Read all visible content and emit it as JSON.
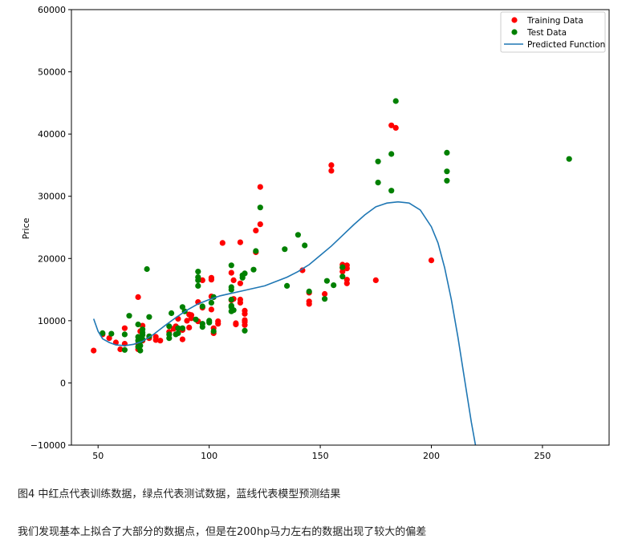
{
  "chart_data": {
    "type": "scatter",
    "xlabel": "",
    "ylabel": "Price",
    "xlim": [
      38,
      280
    ],
    "ylim": [
      -10000,
      60000
    ],
    "x_ticks": [
      "50",
      "100",
      "150",
      "200",
      "250"
    ],
    "x_tick_values": [
      50,
      100,
      150,
      200,
      250
    ],
    "y_ticks": [
      "−10000",
      "0",
      "10000",
      "20000",
      "30000",
      "40000",
      "50000",
      "60000"
    ],
    "y_tick_values": [
      -10000,
      0,
      10000,
      20000,
      30000,
      40000,
      50000,
      60000
    ],
    "legend_position": "top-right",
    "grid": false,
    "series": [
      {
        "name": "Training Data",
        "kind": "scatter",
        "color": "#ff0000",
        "points": [
          [
            48,
            5200
          ],
          [
            52,
            7800
          ],
          [
            55,
            7200
          ],
          [
            58,
            6500
          ],
          [
            60,
            5400
          ],
          [
            62,
            8800
          ],
          [
            62,
            6300
          ],
          [
            68,
            13800
          ],
          [
            68,
            5400
          ],
          [
            68,
            6300
          ],
          [
            69,
            7200
          ],
          [
            69,
            8300
          ],
          [
            70,
            9200
          ],
          [
            70,
            6800
          ],
          [
            73,
            7200
          ],
          [
            76,
            6900
          ],
          [
            76,
            7400
          ],
          [
            78,
            6800
          ],
          [
            82,
            8200
          ],
          [
            84,
            8700
          ],
          [
            85,
            9100
          ],
          [
            86,
            10300
          ],
          [
            88,
            7000
          ],
          [
            88,
            8500
          ],
          [
            90,
            10000
          ],
          [
            91,
            11000
          ],
          [
            91,
            8900
          ],
          [
            92,
            10400
          ],
          [
            92,
            10900
          ],
          [
            95,
            13000
          ],
          [
            95,
            9900
          ],
          [
            97,
            12100
          ],
          [
            97,
            16500
          ],
          [
            101,
            11800
          ],
          [
            101,
            13900
          ],
          [
            101,
            16600
          ],
          [
            101,
            16900
          ],
          [
            102,
            8000
          ],
          [
            102,
            8800
          ],
          [
            104,
            9500
          ],
          [
            104,
            9900
          ],
          [
            106,
            22500
          ],
          [
            110,
            17700
          ],
          [
            110,
            13300
          ],
          [
            111,
            16500
          ],
          [
            111,
            13500
          ],
          [
            112,
            9400
          ],
          [
            112,
            9600
          ],
          [
            114,
            12900
          ],
          [
            114,
            13400
          ],
          [
            114,
            16000
          ],
          [
            114,
            22600
          ],
          [
            116,
            9300
          ],
          [
            116,
            9800
          ],
          [
            116,
            10100
          ],
          [
            116,
            11100
          ],
          [
            116,
            11600
          ],
          [
            121,
            24500
          ],
          [
            121,
            21000
          ],
          [
            123,
            31500
          ],
          [
            123,
            25500
          ],
          [
            142,
            18100
          ],
          [
            145,
            12700
          ],
          [
            145,
            13100
          ],
          [
            145,
            14500
          ],
          [
            152,
            14300
          ],
          [
            155,
            35000
          ],
          [
            155,
            34100
          ],
          [
            160,
            17900
          ],
          [
            160,
            18500
          ],
          [
            160,
            19000
          ],
          [
            162,
            16000
          ],
          [
            162,
            16600
          ],
          [
            162,
            18400
          ],
          [
            162,
            18900
          ],
          [
            175,
            16500
          ],
          [
            182,
            41400
          ],
          [
            184,
            41000
          ],
          [
            200,
            19700
          ]
        ]
      },
      {
        "name": "Test Data",
        "kind": "scatter",
        "color": "#008000",
        "points": [
          [
            52,
            8000
          ],
          [
            56,
            7900
          ],
          [
            62,
            5300
          ],
          [
            62,
            7800
          ],
          [
            64,
            10800
          ],
          [
            68,
            5800
          ],
          [
            68,
            6800
          ],
          [
            68,
            7400
          ],
          [
            68,
            9400
          ],
          [
            69,
            5200
          ],
          [
            69,
            6000
          ],
          [
            69,
            6700
          ],
          [
            70,
            7000
          ],
          [
            70,
            7700
          ],
          [
            70,
            8100
          ],
          [
            70,
            8600
          ],
          [
            72,
            18300
          ],
          [
            73,
            7500
          ],
          [
            73,
            10600
          ],
          [
            82,
            7200
          ],
          [
            82,
            7800
          ],
          [
            82,
            9100
          ],
          [
            83,
            11200
          ],
          [
            85,
            7800
          ],
          [
            86,
            8000
          ],
          [
            86,
            8800
          ],
          [
            88,
            8800
          ],
          [
            88,
            12200
          ],
          [
            89,
            11500
          ],
          [
            94,
            10200
          ],
          [
            95,
            15600
          ],
          [
            95,
            16500
          ],
          [
            95,
            17000
          ],
          [
            95,
            17900
          ],
          [
            97,
            9000
          ],
          [
            97,
            9500
          ],
          [
            97,
            12300
          ],
          [
            100,
            9700
          ],
          [
            100,
            10000
          ],
          [
            101,
            12900
          ],
          [
            102,
            8300
          ],
          [
            102,
            13800
          ],
          [
            110,
            11500
          ],
          [
            110,
            12200
          ],
          [
            110,
            12400
          ],
          [
            110,
            13400
          ],
          [
            110,
            15000
          ],
          [
            110,
            15400
          ],
          [
            110,
            18900
          ],
          [
            111,
            11700
          ],
          [
            115,
            16900
          ],
          [
            115,
            17300
          ],
          [
            116,
            8400
          ],
          [
            116,
            17600
          ],
          [
            120,
            18200
          ],
          [
            121,
            21200
          ],
          [
            123,
            28200
          ],
          [
            134,
            21500
          ],
          [
            135,
            15600
          ],
          [
            140,
            23800
          ],
          [
            143,
            22100
          ],
          [
            145,
            14700
          ],
          [
            152,
            13500
          ],
          [
            153,
            16400
          ],
          [
            156,
            15700
          ],
          [
            160,
            17100
          ],
          [
            160,
            18600
          ],
          [
            176,
            32200
          ],
          [
            176,
            35600
          ],
          [
            182,
            30900
          ],
          [
            182,
            36800
          ],
          [
            184,
            45300
          ],
          [
            207,
            32500
          ],
          [
            207,
            34000
          ],
          [
            207,
            37000
          ],
          [
            262,
            36000
          ]
        ]
      },
      {
        "name": "Predicted Function",
        "kind": "line",
        "color": "#1f77b4",
        "points": [
          [
            48,
            10300
          ],
          [
            50,
            8300
          ],
          [
            52,
            7100
          ],
          [
            55,
            6500
          ],
          [
            58,
            6100
          ],
          [
            62,
            6000
          ],
          [
            66,
            6200
          ],
          [
            70,
            6700
          ],
          [
            75,
            7800
          ],
          [
            80,
            9200
          ],
          [
            85,
            10500
          ],
          [
            90,
            11700
          ],
          [
            95,
            12700
          ],
          [
            100,
            13400
          ],
          [
            105,
            14000
          ],
          [
            110,
            14400
          ],
          [
            115,
            14800
          ],
          [
            120,
            15200
          ],
          [
            125,
            15600
          ],
          [
            130,
            16300
          ],
          [
            135,
            17000
          ],
          [
            140,
            17900
          ],
          [
            145,
            19000
          ],
          [
            150,
            20500
          ],
          [
            155,
            22000
          ],
          [
            160,
            23700
          ],
          [
            165,
            25400
          ],
          [
            170,
            27000
          ],
          [
            175,
            28300
          ],
          [
            180,
            28900
          ],
          [
            185,
            29100
          ],
          [
            190,
            28900
          ],
          [
            195,
            27800
          ],
          [
            200,
            25100
          ],
          [
            203,
            22500
          ],
          [
            206,
            18500
          ],
          [
            209,
            13400
          ],
          [
            212,
            7300
          ],
          [
            215,
            500
          ],
          [
            218,
            -6300
          ],
          [
            220,
            -10300
          ]
        ]
      }
    ]
  },
  "captions": {
    "line1": "图4 中红点代表训练数据，绿点代表测试数据，蓝线代表模型预测结果",
    "line2": "我们发现基本上拟合了大部分的数据点，但是在200hp马力左右的数据出现了较大的偏差"
  }
}
